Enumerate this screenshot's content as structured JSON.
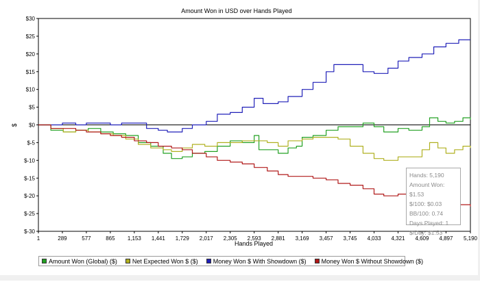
{
  "chart_data": {
    "type": "line",
    "title": "Amount Won in USD over Hands Played",
    "xlabel": "Hands Played",
    "ylabel": "$",
    "xlim": [
      1,
      5190
    ],
    "ylim": [
      -30,
      30
    ],
    "x_ticks": [
      "1",
      "289",
      "577",
      "865",
      "1,153",
      "1,441",
      "1,729",
      "2,017",
      "2,305",
      "2,593",
      "2,881",
      "3,169",
      "3,457",
      "3,745",
      "4,033",
      "4,321",
      "4,609",
      "4,897",
      "5,190"
    ],
    "y_ticks": [
      "$30",
      "$25",
      "$20",
      "$15",
      "$10",
      "$5",
      "$0",
      "$-5",
      "$-10",
      "$-15",
      "$-20",
      "$-25",
      "$-30"
    ],
    "legend_position": "bottom",
    "series": [
      {
        "name": "Amount Won (Global) ($)",
        "color": "#22a022",
        "points": [
          [
            1,
            0
          ],
          [
            150,
            -1.5
          ],
          [
            300,
            -2
          ],
          [
            450,
            -1.5
          ],
          [
            600,
            -1
          ],
          [
            750,
            -2
          ],
          [
            900,
            -2.5
          ],
          [
            1050,
            -3
          ],
          [
            1200,
            -5
          ],
          [
            1350,
            -6
          ],
          [
            1500,
            -8
          ],
          [
            1600,
            -9.5
          ],
          [
            1729,
            -9
          ],
          [
            1850,
            -8
          ],
          [
            2000,
            -7.5
          ],
          [
            2150,
            -6
          ],
          [
            2305,
            -4.5
          ],
          [
            2450,
            -5
          ],
          [
            2593,
            -3
          ],
          [
            2650,
            -7
          ],
          [
            2750,
            -7
          ],
          [
            2881,
            -8
          ],
          [
            3000,
            -6.5
          ],
          [
            3100,
            -6
          ],
          [
            3169,
            -3.5
          ],
          [
            3300,
            -3
          ],
          [
            3457,
            -1.5
          ],
          [
            3600,
            -0.5
          ],
          [
            3745,
            -0.5
          ],
          [
            3900,
            0.5
          ],
          [
            4033,
            -0.5
          ],
          [
            4150,
            -2
          ],
          [
            4321,
            -1
          ],
          [
            4450,
            -1.5
          ],
          [
            4609,
            -0.5
          ],
          [
            4700,
            2
          ],
          [
            4800,
            1
          ],
          [
            4897,
            0.5
          ],
          [
            5000,
            1
          ],
          [
            5100,
            2
          ],
          [
            5190,
            1.5
          ]
        ]
      },
      {
        "name": "Net Expected Won $ ($)",
        "color": "#b0b020",
        "points": [
          [
            1,
            0
          ],
          [
            150,
            -1
          ],
          [
            300,
            -2
          ],
          [
            450,
            -1.5
          ],
          [
            600,
            -2
          ],
          [
            750,
            -2.5
          ],
          [
            900,
            -3
          ],
          [
            1050,
            -4
          ],
          [
            1200,
            -5.5
          ],
          [
            1350,
            -6.5
          ],
          [
            1500,
            -7
          ],
          [
            1600,
            -7.5
          ],
          [
            1729,
            -6.5
          ],
          [
            1850,
            -5.5
          ],
          [
            2000,
            -6
          ],
          [
            2150,
            -5
          ],
          [
            2305,
            -5
          ],
          [
            2450,
            -4.5
          ],
          [
            2593,
            -4.5
          ],
          [
            2750,
            -5
          ],
          [
            2881,
            -6
          ],
          [
            3000,
            -4.5
          ],
          [
            3169,
            -4
          ],
          [
            3300,
            -3.5
          ],
          [
            3457,
            -3.5
          ],
          [
            3600,
            -4
          ],
          [
            3745,
            -6
          ],
          [
            3900,
            -8
          ],
          [
            4033,
            -9.5
          ],
          [
            4150,
            -10
          ],
          [
            4321,
            -9
          ],
          [
            4450,
            -9
          ],
          [
            4609,
            -7
          ],
          [
            4700,
            -5
          ],
          [
            4800,
            -6.5
          ],
          [
            4897,
            -8
          ],
          [
            5000,
            -7
          ],
          [
            5100,
            -6
          ],
          [
            5190,
            -6.5
          ]
        ]
      },
      {
        "name": "Money Won $ With Showdown ($)",
        "color": "#1f1fb8",
        "points": [
          [
            1,
            0
          ],
          [
            150,
            0
          ],
          [
            289,
            0.5
          ],
          [
            450,
            0
          ],
          [
            577,
            0.5
          ],
          [
            750,
            0.5
          ],
          [
            865,
            0
          ],
          [
            1000,
            0.5
          ],
          [
            1153,
            0.5
          ],
          [
            1300,
            -1
          ],
          [
            1441,
            -1.5
          ],
          [
            1550,
            -2
          ],
          [
            1729,
            -1
          ],
          [
            1850,
            0
          ],
          [
            2017,
            1
          ],
          [
            2150,
            3
          ],
          [
            2305,
            3.5
          ],
          [
            2450,
            5
          ],
          [
            2593,
            7.5
          ],
          [
            2700,
            6
          ],
          [
            2881,
            6.5
          ],
          [
            3000,
            8
          ],
          [
            3169,
            10
          ],
          [
            3300,
            12
          ],
          [
            3457,
            15
          ],
          [
            3550,
            17
          ],
          [
            3745,
            17
          ],
          [
            3900,
            15
          ],
          [
            4033,
            14.5
          ],
          [
            4200,
            16
          ],
          [
            4321,
            18
          ],
          [
            4450,
            19
          ],
          [
            4609,
            20
          ],
          [
            4750,
            22
          ],
          [
            4897,
            23
          ],
          [
            5050,
            24
          ],
          [
            5190,
            24
          ]
        ]
      },
      {
        "name": "Money Won $ Without Showdown ($)",
        "color": "#b01818",
        "points": [
          [
            1,
            0
          ],
          [
            150,
            -1
          ],
          [
            289,
            -1
          ],
          [
            450,
            -1.5
          ],
          [
            577,
            -2
          ],
          [
            750,
            -2.5
          ],
          [
            865,
            -3
          ],
          [
            1000,
            -3.5
          ],
          [
            1153,
            -4.5
          ],
          [
            1300,
            -5
          ],
          [
            1441,
            -6
          ],
          [
            1600,
            -6.5
          ],
          [
            1729,
            -7
          ],
          [
            1850,
            -8
          ],
          [
            2017,
            -9
          ],
          [
            2150,
            -10
          ],
          [
            2305,
            -10.5
          ],
          [
            2450,
            -11
          ],
          [
            2593,
            -12
          ],
          [
            2750,
            -13
          ],
          [
            2881,
            -14
          ],
          [
            3000,
            -14.5
          ],
          [
            3169,
            -14.5
          ],
          [
            3300,
            -15
          ],
          [
            3457,
            -15.5
          ],
          [
            3600,
            -16.5
          ],
          [
            3745,
            -17
          ],
          [
            3900,
            -18
          ],
          [
            4033,
            -19.5
          ],
          [
            4150,
            -20
          ],
          [
            4321,
            -19.5
          ],
          [
            4450,
            -19
          ],
          [
            4609,
            -20
          ],
          [
            4750,
            -21.5
          ],
          [
            4897,
            -22
          ],
          [
            5050,
            -22.5
          ],
          [
            5190,
            -23
          ]
        ]
      }
    ]
  },
  "info_box": {
    "lines": [
      "Hands: 5,190",
      "Amount Won: $1.53",
      "$/100: $0.03",
      "BB/100: 0.74",
      "Days Played: 1",
      "$/Day: $1.53"
    ]
  }
}
